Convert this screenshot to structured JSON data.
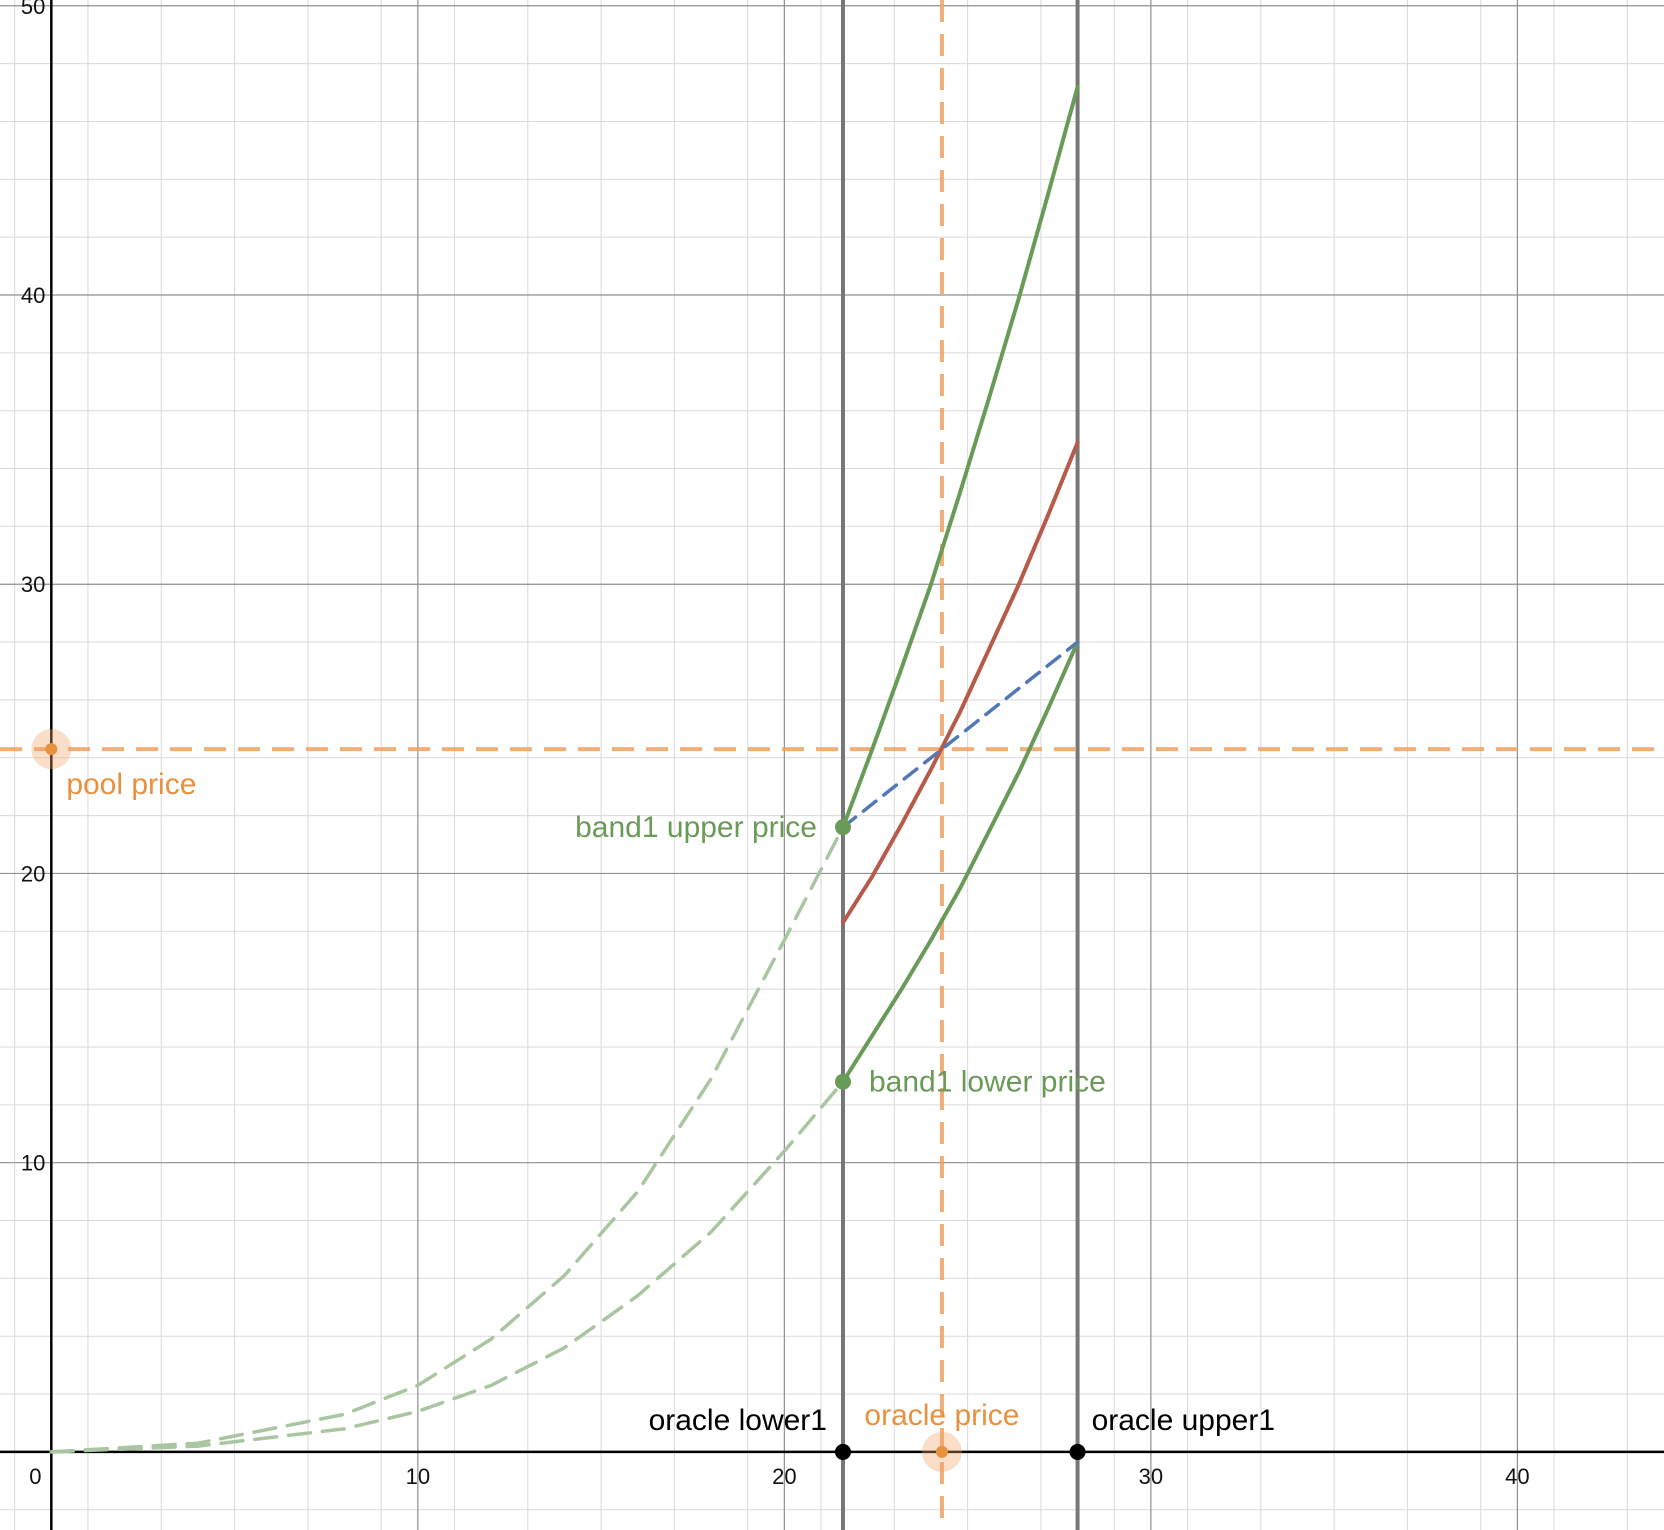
{
  "chart_data": {
    "type": "line",
    "title": "",
    "xlabel": "",
    "ylabel": "",
    "xlim": [
      -1.4,
      44
    ],
    "ylim": [
      -2.7,
      50.2
    ],
    "x_ticks": [
      {
        "value": 0,
        "label": "0"
      },
      {
        "value": 10,
        "label": "10"
      },
      {
        "value": 20,
        "label": "20"
      },
      {
        "value": 30,
        "label": "30"
      },
      {
        "value": 40,
        "label": "40"
      }
    ],
    "y_ticks": [
      {
        "value": 10,
        "label": "10"
      },
      {
        "value": 20,
        "label": "20"
      },
      {
        "value": 30,
        "label": "30"
      },
      {
        "value": 40,
        "label": "40"
      },
      {
        "value": 50,
        "label": "50"
      }
    ],
    "grid": true,
    "oracle_lower": 21.6,
    "oracle_upper": 28.0,
    "oracle_price": 24.3,
    "pool_price": 24.3,
    "band_upper_price": 21.6,
    "band_lower_price": 12.8,
    "series": [
      {
        "key": "upper-dashed",
        "color": "#a9c6a0",
        "dashed": true,
        "x": [
          0,
          4,
          8,
          10,
          12,
          14,
          16,
          18,
          20,
          21.6
        ],
        "y": [
          0,
          0.3,
          1.3,
          2.3,
          3.9,
          6.1,
          9.0,
          12.9,
          17.7,
          21.6
        ]
      },
      {
        "key": "lower-dashed",
        "color": "#a9c6a0",
        "dashed": true,
        "x": [
          0,
          4,
          8,
          10,
          12,
          14,
          16,
          18,
          20,
          21.6
        ],
        "y": [
          0,
          0.2,
          0.8,
          1.4,
          2.3,
          3.6,
          5.4,
          7.6,
          10.4,
          12.8
        ]
      },
      {
        "key": "upper-curve",
        "color": "#6a9a58",
        "dashed": false,
        "x": [
          21.6,
          22.4,
          23.2,
          24.0,
          24.8,
          25.6,
          26.4,
          27.2,
          28.0
        ],
        "y": [
          21.6,
          24.3,
          27.1,
          30.0,
          33.2,
          36.5,
          39.9,
          43.5,
          47.2
        ]
      },
      {
        "key": "lower-curve",
        "color": "#6a9a58",
        "dashed": false,
        "x": [
          21.6,
          22.4,
          23.2,
          24.0,
          24.8,
          25.6,
          26.4,
          27.2,
          28.0
        ],
        "y": [
          12.8,
          14.4,
          16.0,
          17.7,
          19.5,
          21.5,
          23.5,
          25.7,
          28.0
        ]
      },
      {
        "key": "red-curve",
        "color": "#b85a4a",
        "dashed": false,
        "x": [
          21.6,
          22.4,
          23.2,
          24.0,
          24.8,
          25.6,
          26.4,
          27.2,
          28.0
        ],
        "y": [
          18.3,
          19.9,
          21.7,
          23.6,
          25.6,
          27.8,
          30.0,
          32.4,
          34.9
        ]
      },
      {
        "key": "blue-line",
        "color": "#5478b4",
        "dashed": true,
        "x": [
          21.6,
          28.0
        ],
        "y": [
          21.6,
          28.0
        ]
      }
    ],
    "annotations": {
      "pool_price": "pool price",
      "band_upper": "band1 upper price",
      "band_lower": "band1 lower price",
      "oracle_lower": "oracle lower1",
      "oracle_price": "oracle price",
      "oracle_upper": "oracle upper1"
    },
    "colors": {
      "orange": "#f0a060",
      "orange_text": "#e8913f",
      "green_text": "#6a9a58",
      "vertical_line": "#777777",
      "axis": "#000000",
      "grid_major": "#8f8f8f",
      "grid_minor": "#d9d9d9"
    }
  }
}
